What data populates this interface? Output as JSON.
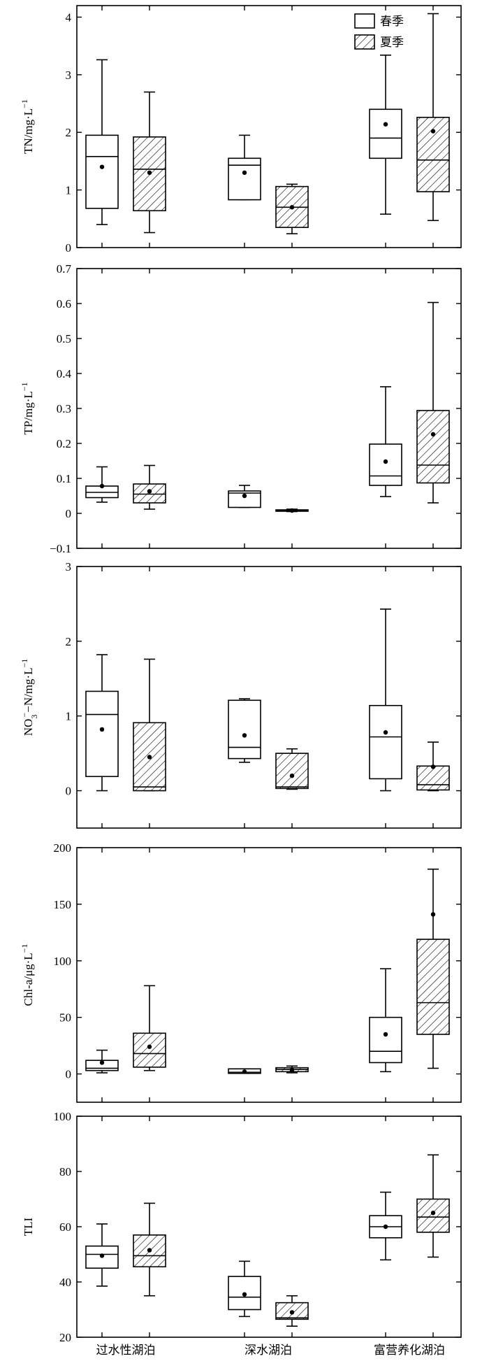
{
  "chart_data": [
    {
      "type": "box",
      "ylabel": "TN/mg·L",
      "ylabel_sup": "−1",
      "ylim": [
        0,
        4.2
      ],
      "yticks": [
        0,
        1,
        2,
        3,
        4
      ],
      "yticklabels": [
        "0",
        "1",
        "2",
        "3",
        "4"
      ],
      "categories": [
        "过水性湖泊",
        "深水湖泊",
        "富营养化湖泊"
      ],
      "legend": {
        "position": "top-right",
        "entries": [
          "春季",
          "夏季"
        ]
      },
      "series": [
        {
          "name": "春季",
          "boxes": [
            {
              "min": 0.4,
              "q1": 0.68,
              "median": 1.58,
              "q3": 1.95,
              "max": 3.26,
              "mean": 1.4
            },
            {
              "min": 0.83,
              "q1": 0.83,
              "median": 1.43,
              "q3": 1.55,
              "max": 1.95,
              "mean": 1.3
            },
            {
              "min": 0.58,
              "q1": 1.55,
              "median": 1.9,
              "q3": 2.4,
              "max": 3.34,
              "mean": 2.14
            }
          ]
        },
        {
          "name": "夏季",
          "boxes": [
            {
              "min": 0.26,
              "q1": 0.64,
              "median": 1.36,
              "q3": 1.92,
              "max": 2.7,
              "mean": 1.3
            },
            {
              "min": 0.24,
              "q1": 0.35,
              "median": 0.7,
              "q3": 1.06,
              "max": 1.1,
              "mean": 0.7
            },
            {
              "min": 0.47,
              "q1": 0.97,
              "median": 1.52,
              "q3": 2.26,
              "max": 4.06,
              "mean": 2.02
            }
          ]
        }
      ]
    },
    {
      "type": "box",
      "ylabel": "TP/mg·L",
      "ylabel_sup": "−1",
      "ylim": [
        -0.1,
        0.7
      ],
      "yticks": [
        -0.1,
        0,
        0.1,
        0.2,
        0.3,
        0.4,
        0.5,
        0.6,
        0.7
      ],
      "yticklabels": [
        "−0.1",
        "0",
        "0.1",
        "0.2",
        "0.3",
        "0.4",
        "0.5",
        "0.6",
        "0.7"
      ],
      "categories": [
        "过水性湖泊",
        "深水湖泊",
        "富营养化湖泊"
      ],
      "series": [
        {
          "name": "春季",
          "boxes": [
            {
              "min": 0.032,
              "q1": 0.045,
              "median": 0.06,
              "q3": 0.078,
              "max": 0.133,
              "mean": 0.078
            },
            {
              "min": 0.017,
              "q1": 0.017,
              "median": 0.058,
              "q3": 0.064,
              "max": 0.08,
              "mean": 0.05
            },
            {
              "min": 0.048,
              "q1": 0.08,
              "median": 0.107,
              "q3": 0.198,
              "max": 0.362,
              "mean": 0.148
            }
          ]
        },
        {
          "name": "夏季",
          "boxes": [
            {
              "min": 0.012,
              "q1": 0.03,
              "median": 0.055,
              "q3": 0.084,
              "max": 0.137,
              "mean": 0.063
            },
            {
              "min": 0.005,
              "q1": 0.006,
              "median": 0.008,
              "q3": 0.01,
              "max": 0.012,
              "mean": 0.008
            },
            {
              "min": 0.03,
              "q1": 0.087,
              "median": 0.138,
              "q3": 0.294,
              "max": 0.603,
              "mean": 0.226
            }
          ]
        }
      ]
    },
    {
      "type": "box",
      "ylabel": "NO",
      "ylabel_sub": "3",
      "ylabel_mid": "−N/mg·L",
      "ylabel_sup": "−1",
      "ylabel_nosup": "−",
      "ylim": [
        -0.5,
        3
      ],
      "yticks": [
        0,
        1,
        2,
        3
      ],
      "yticklabels": [
        "0",
        "1",
        "2",
        "3"
      ],
      "categories": [
        "过水性湖泊",
        "深水湖泊",
        "富营养化湖泊"
      ],
      "series": [
        {
          "name": "春季",
          "boxes": [
            {
              "min": 0.0,
              "q1": 0.19,
              "median": 1.02,
              "q3": 1.33,
              "max": 1.82,
              "mean": 0.82
            },
            {
              "min": 0.38,
              "q1": 0.43,
              "median": 0.58,
              "q3": 1.21,
              "max": 1.23,
              "mean": 0.74
            },
            {
              "min": 0.0,
              "q1": 0.16,
              "median": 0.72,
              "q3": 1.14,
              "max": 2.43,
              "mean": 0.78
            }
          ]
        },
        {
          "name": "夏季",
          "boxes": [
            {
              "min": 0.0,
              "q1": 0.0,
              "median": 0.05,
              "q3": 0.91,
              "max": 1.76,
              "mean": 0.45
            },
            {
              "min": 0.02,
              "q1": 0.03,
              "median": 0.05,
              "q3": 0.5,
              "max": 0.56,
              "mean": 0.2
            },
            {
              "min": 0.0,
              "q1": 0.01,
              "median": 0.08,
              "q3": 0.33,
              "max": 0.65,
              "mean": 0.32
            }
          ]
        }
      ]
    },
    {
      "type": "box",
      "ylabel": "Chl-a/μg·L",
      "ylabel_sup": "−1",
      "ylim": [
        -25,
        200
      ],
      "yticks": [
        0,
        50,
        100,
        150,
        200
      ],
      "yticklabels": [
        "0",
        "50",
        "100",
        "150",
        "200"
      ],
      "categories": [
        "过水性湖泊",
        "深水湖泊",
        "富营养化湖泊"
      ],
      "series": [
        {
          "name": "春季",
          "boxes": [
            {
              "min": 1,
              "q1": 3,
              "median": 5,
              "q3": 12,
              "max": 21,
              "mean": 10
            },
            {
              "min": 0.5,
              "q1": 0.5,
              "median": 1.5,
              "q3": 4.5,
              "max": 4.5,
              "mean": 2
            },
            {
              "min": 2,
              "q1": 10,
              "median": 20,
              "q3": 50,
              "max": 93,
              "mean": 35
            }
          ]
        },
        {
          "name": "夏季",
          "boxes": [
            {
              "min": 3,
              "q1": 6,
              "median": 18,
              "q3": 36,
              "max": 78,
              "mean": 24
            },
            {
              "min": 1,
              "q1": 2,
              "median": 4,
              "q3": 5.5,
              "max": 7,
              "mean": 3.5
            },
            {
              "min": 5,
              "q1": 35,
              "median": 63,
              "q3": 119,
              "max": 181,
              "mean": 141
            }
          ]
        }
      ]
    },
    {
      "type": "box",
      "ylabel": "TLI",
      "ylim": [
        20,
        100
      ],
      "yticks": [
        20,
        40,
        60,
        80,
        100
      ],
      "yticklabels": [
        "20",
        "40",
        "60",
        "80",
        "100"
      ],
      "categories": [
        "过水性湖泊",
        "深水湖泊",
        "富营养化湖泊"
      ],
      "series": [
        {
          "name": "春季",
          "boxes": [
            {
              "min": 38.5,
              "q1": 45,
              "median": 50,
              "q3": 53,
              "max": 61,
              "mean": 49.5
            },
            {
              "min": 27.5,
              "q1": 30,
              "median": 34.5,
              "q3": 42,
              "max": 47.5,
              "mean": 35.5
            },
            {
              "min": 48,
              "q1": 56,
              "median": 60,
              "q3": 64,
              "max": 72.5,
              "mean": 60
            }
          ]
        },
        {
          "name": "夏季",
          "boxes": [
            {
              "min": 35,
              "q1": 45.5,
              "median": 49.5,
              "q3": 57,
              "max": 68.5,
              "mean": 51.5
            },
            {
              "min": 24,
              "q1": 26.5,
              "median": 27,
              "q3": 32.5,
              "max": 35,
              "mean": 29
            },
            {
              "min": 49,
              "q1": 58,
              "median": 63.5,
              "q3": 70,
              "max": 86,
              "mean": 65
            }
          ]
        }
      ]
    }
  ]
}
